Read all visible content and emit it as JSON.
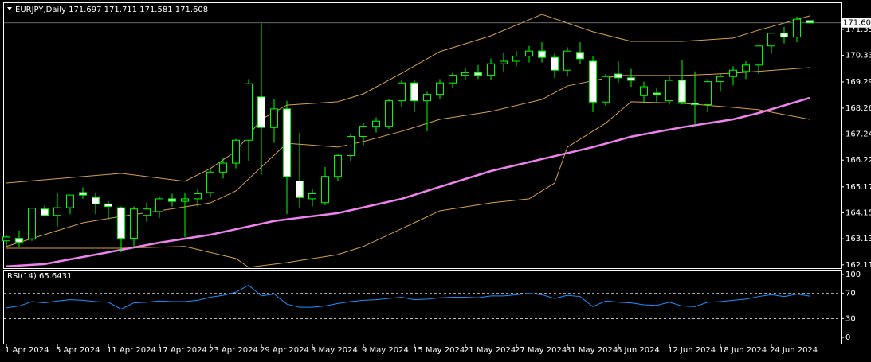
{
  "chart_data": [
    {
      "type": "candlestick",
      "title": "EURJPY,Daily",
      "categories": [
        "1 Apr 2024",
        null,
        null,
        null,
        "5 Apr 2024",
        null,
        null,
        null,
        "11 Apr 2024",
        null,
        null,
        null,
        "17 Apr 2024",
        null,
        null,
        null,
        "23 Apr 2024",
        null,
        null,
        null,
        "29 Apr 2024",
        null,
        null,
        null,
        "3 May 2024",
        null,
        null,
        null,
        "9 May 2024",
        null,
        null,
        null,
        "15 May 2024",
        null,
        null,
        null,
        "21 May 2024",
        null,
        null,
        null,
        "27 May 2024",
        null,
        null,
        null,
        "31 May 2024",
        null,
        null,
        null,
        "6 Jun 2024",
        null,
        null,
        null,
        "12 Jun 2024",
        null,
        null,
        null,
        "18 Jun 2024",
        null,
        null,
        null,
        "24 Jun 2024",
        null,
        null,
        null
      ],
      "open": [
        163.05,
        163.15,
        163.13,
        164.3,
        164.05,
        164.35,
        164.95,
        164.75,
        164.5,
        164.35,
        163.15,
        164.05,
        164.2,
        164.7,
        164.6,
        164.7,
        164.95,
        165.75,
        166.1,
        167.0,
        168.7,
        167.5,
        168.23,
        165.4,
        164.7,
        164.55,
        165.58,
        166.4,
        167.15,
        167.55,
        167.55,
        168.55,
        169.25,
        168.55,
        168.8,
        169.25,
        169.55,
        169.65,
        169.55,
        170.0,
        170.1,
        170.3,
        170.5,
        170.25,
        169.75,
        170.45,
        170.1,
        168.5,
        169.6,
        169.45,
        168.75,
        168.85,
        168.55,
        169.35,
        168.45,
        168.4,
        169.3,
        169.5,
        169.7,
        169.95,
        170.7,
        171.2,
        171.05,
        171.697
      ],
      "high": [
        163.3,
        163.45,
        164.35,
        164.45,
        164.95,
        164.8,
        165.15,
        164.95,
        164.6,
        164.4,
        164.4,
        164.55,
        164.8,
        164.9,
        164.95,
        165.1,
        165.9,
        166.3,
        167.05,
        169.4,
        171.59,
        168.6,
        168.55,
        167.3,
        165.1,
        165.95,
        166.45,
        167.25,
        167.7,
        167.9,
        168.6,
        169.35,
        169.35,
        168.9,
        169.4,
        169.65,
        169.85,
        169.95,
        170.2,
        170.45,
        170.5,
        170.7,
        170.85,
        170.4,
        170.65,
        170.85,
        170.3,
        169.6,
        170.1,
        169.8,
        169.3,
        169.05,
        169.55,
        170.15,
        169.7,
        169.4,
        169.6,
        169.9,
        170.1,
        170.75,
        171.2,
        171.45,
        171.85,
        171.711
      ],
      "low": [
        162.85,
        162.8,
        163.05,
        164.0,
        163.6,
        164.1,
        164.7,
        164.1,
        163.9,
        162.6,
        162.8,
        163.8,
        163.95,
        164.4,
        163.2,
        164.4,
        164.75,
        165.5,
        165.9,
        166.2,
        165.65,
        166.9,
        164.1,
        164.35,
        164.4,
        164.45,
        165.4,
        166.2,
        166.8,
        167.3,
        167.45,
        168.3,
        168.1,
        167.35,
        168.6,
        169.05,
        169.35,
        169.4,
        169.35,
        169.7,
        169.9,
        170.05,
        170.05,
        169.45,
        169.5,
        170.0,
        168.1,
        168.35,
        169.25,
        169.1,
        168.45,
        168.5,
        168.4,
        168.4,
        167.6,
        168.1,
        168.9,
        169.15,
        169.4,
        169.6,
        170.4,
        170.8,
        170.85,
        171.581
      ],
      "close": [
        163.2,
        163.0,
        164.33,
        164.05,
        164.35,
        164.85,
        164.85,
        164.5,
        164.4,
        163.15,
        164.3,
        164.3,
        164.7,
        164.6,
        164.7,
        164.9,
        165.75,
        166.1,
        167.0,
        169.22,
        167.5,
        168.23,
        165.58,
        164.75,
        164.9,
        165.58,
        166.4,
        167.15,
        167.55,
        167.75,
        168.55,
        169.25,
        168.55,
        168.8,
        169.25,
        169.55,
        169.65,
        169.55,
        170.0,
        170.1,
        170.3,
        170.5,
        170.25,
        169.75,
        170.5,
        170.2,
        168.5,
        169.5,
        169.45,
        169.35,
        169.1,
        168.8,
        169.35,
        168.5,
        168.4,
        169.3,
        169.5,
        169.75,
        169.95,
        170.7,
        171.2,
        171.05,
        171.75,
        171.608
      ],
      "wick_color": "#00ff00",
      "up_color": "#000000",
      "down_color": "#ffffff",
      "overlays": [
        {
          "color": "#d7a04a",
          "width": 1,
          "x": [
            0,
            9,
            14,
            16,
            18,
            20,
            22,
            26,
            28,
            31,
            34,
            38,
            42,
            46,
            49,
            53,
            57,
            59,
            63
          ],
          "values": [
            165.32,
            165.7,
            165.39,
            165.89,
            166.57,
            167.82,
            168.38,
            168.51,
            168.82,
            169.63,
            170.48,
            171.1,
            171.94,
            171.26,
            170.88,
            170.88,
            171.01,
            171.32,
            171.88
          ]
        },
        {
          "color": "#d7a04a",
          "width": 1,
          "x": [
            0,
            6,
            9,
            12,
            16,
            18,
            20,
            22,
            26,
            28,
            31,
            34,
            38,
            42,
            44,
            48,
            53,
            57,
            63
          ],
          "values": [
            162.83,
            163.76,
            164.01,
            164.23,
            164.54,
            165.01,
            165.95,
            166.88,
            166.73,
            166.95,
            167.35,
            167.82,
            168.13,
            168.6,
            169.13,
            169.54,
            169.54,
            169.63,
            169.85
          ]
        },
        {
          "color": "#d7a04a",
          "width": 1,
          "x": [
            0,
            9,
            14,
            18,
            19,
            22,
            26,
            28,
            32,
            34,
            38,
            41,
            43,
            44,
            47,
            49,
            53,
            57,
            59,
            63
          ],
          "values": [
            162.76,
            162.76,
            162.83,
            162.36,
            162.01,
            162.2,
            162.51,
            162.83,
            163.76,
            164.23,
            164.54,
            164.7,
            165.32,
            166.73,
            167.67,
            168.51,
            168.45,
            168.29,
            168.2,
            167.82
          ]
        },
        {
          "color": "#ee82ee",
          "width": 2.5,
          "x": [
            0,
            3,
            7,
            12,
            16,
            21,
            26,
            31,
            34,
            38,
            42,
            46,
            49,
            53,
            57,
            59,
            63
          ],
          "values": [
            162.05,
            162.14,
            162.51,
            162.98,
            163.29,
            163.83,
            164.14,
            164.7,
            165.17,
            165.79,
            166.26,
            166.73,
            167.14,
            167.51,
            167.82,
            168.07,
            168.66
          ]
        }
      ],
      "ylim": [
        161.98,
        172.38
      ],
      "yticks": [
        {
          "value": 171.35,
          "label": "171.350"
        },
        {
          "value": 170.33,
          "label": "170.330"
        },
        {
          "value": 169.29,
          "label": "169.290"
        },
        {
          "value": 168.26,
          "label": "168.260"
        },
        {
          "value": 167.24,
          "label": "167.240"
        },
        {
          "value": 166.22,
          "label": "166.220"
        },
        {
          "value": 165.17,
          "label": "165.170"
        },
        {
          "value": 164.15,
          "label": "164.150"
        },
        {
          "value": 163.13,
          "label": "163.130"
        },
        {
          "value": 162.11,
          "label": "162.110"
        }
      ]
    },
    {
      "type": "line",
      "title": "RSI(14)",
      "color": "#1e90ff",
      "values": [
        47,
        50,
        57,
        55,
        58,
        60,
        59,
        57,
        56,
        45,
        55,
        56,
        58,
        57,
        57,
        59,
        64,
        67,
        72,
        83,
        66,
        69,
        53,
        48,
        48,
        50,
        54,
        57,
        59,
        60,
        62,
        64,
        60,
        61,
        63,
        64,
        64,
        63,
        66,
        66,
        68,
        70,
        68,
        62,
        67,
        65,
        49,
        58,
        56,
        55,
        52,
        51,
        56,
        50,
        49,
        56,
        57,
        59,
        61,
        65,
        68,
        65,
        69,
        65.6431
      ],
      "ylim": [
        -10,
        107.6
      ],
      "yticks": [
        100,
        70,
        30,
        0
      ],
      "levels": [
        70,
        30
      ]
    }
  ]
}
